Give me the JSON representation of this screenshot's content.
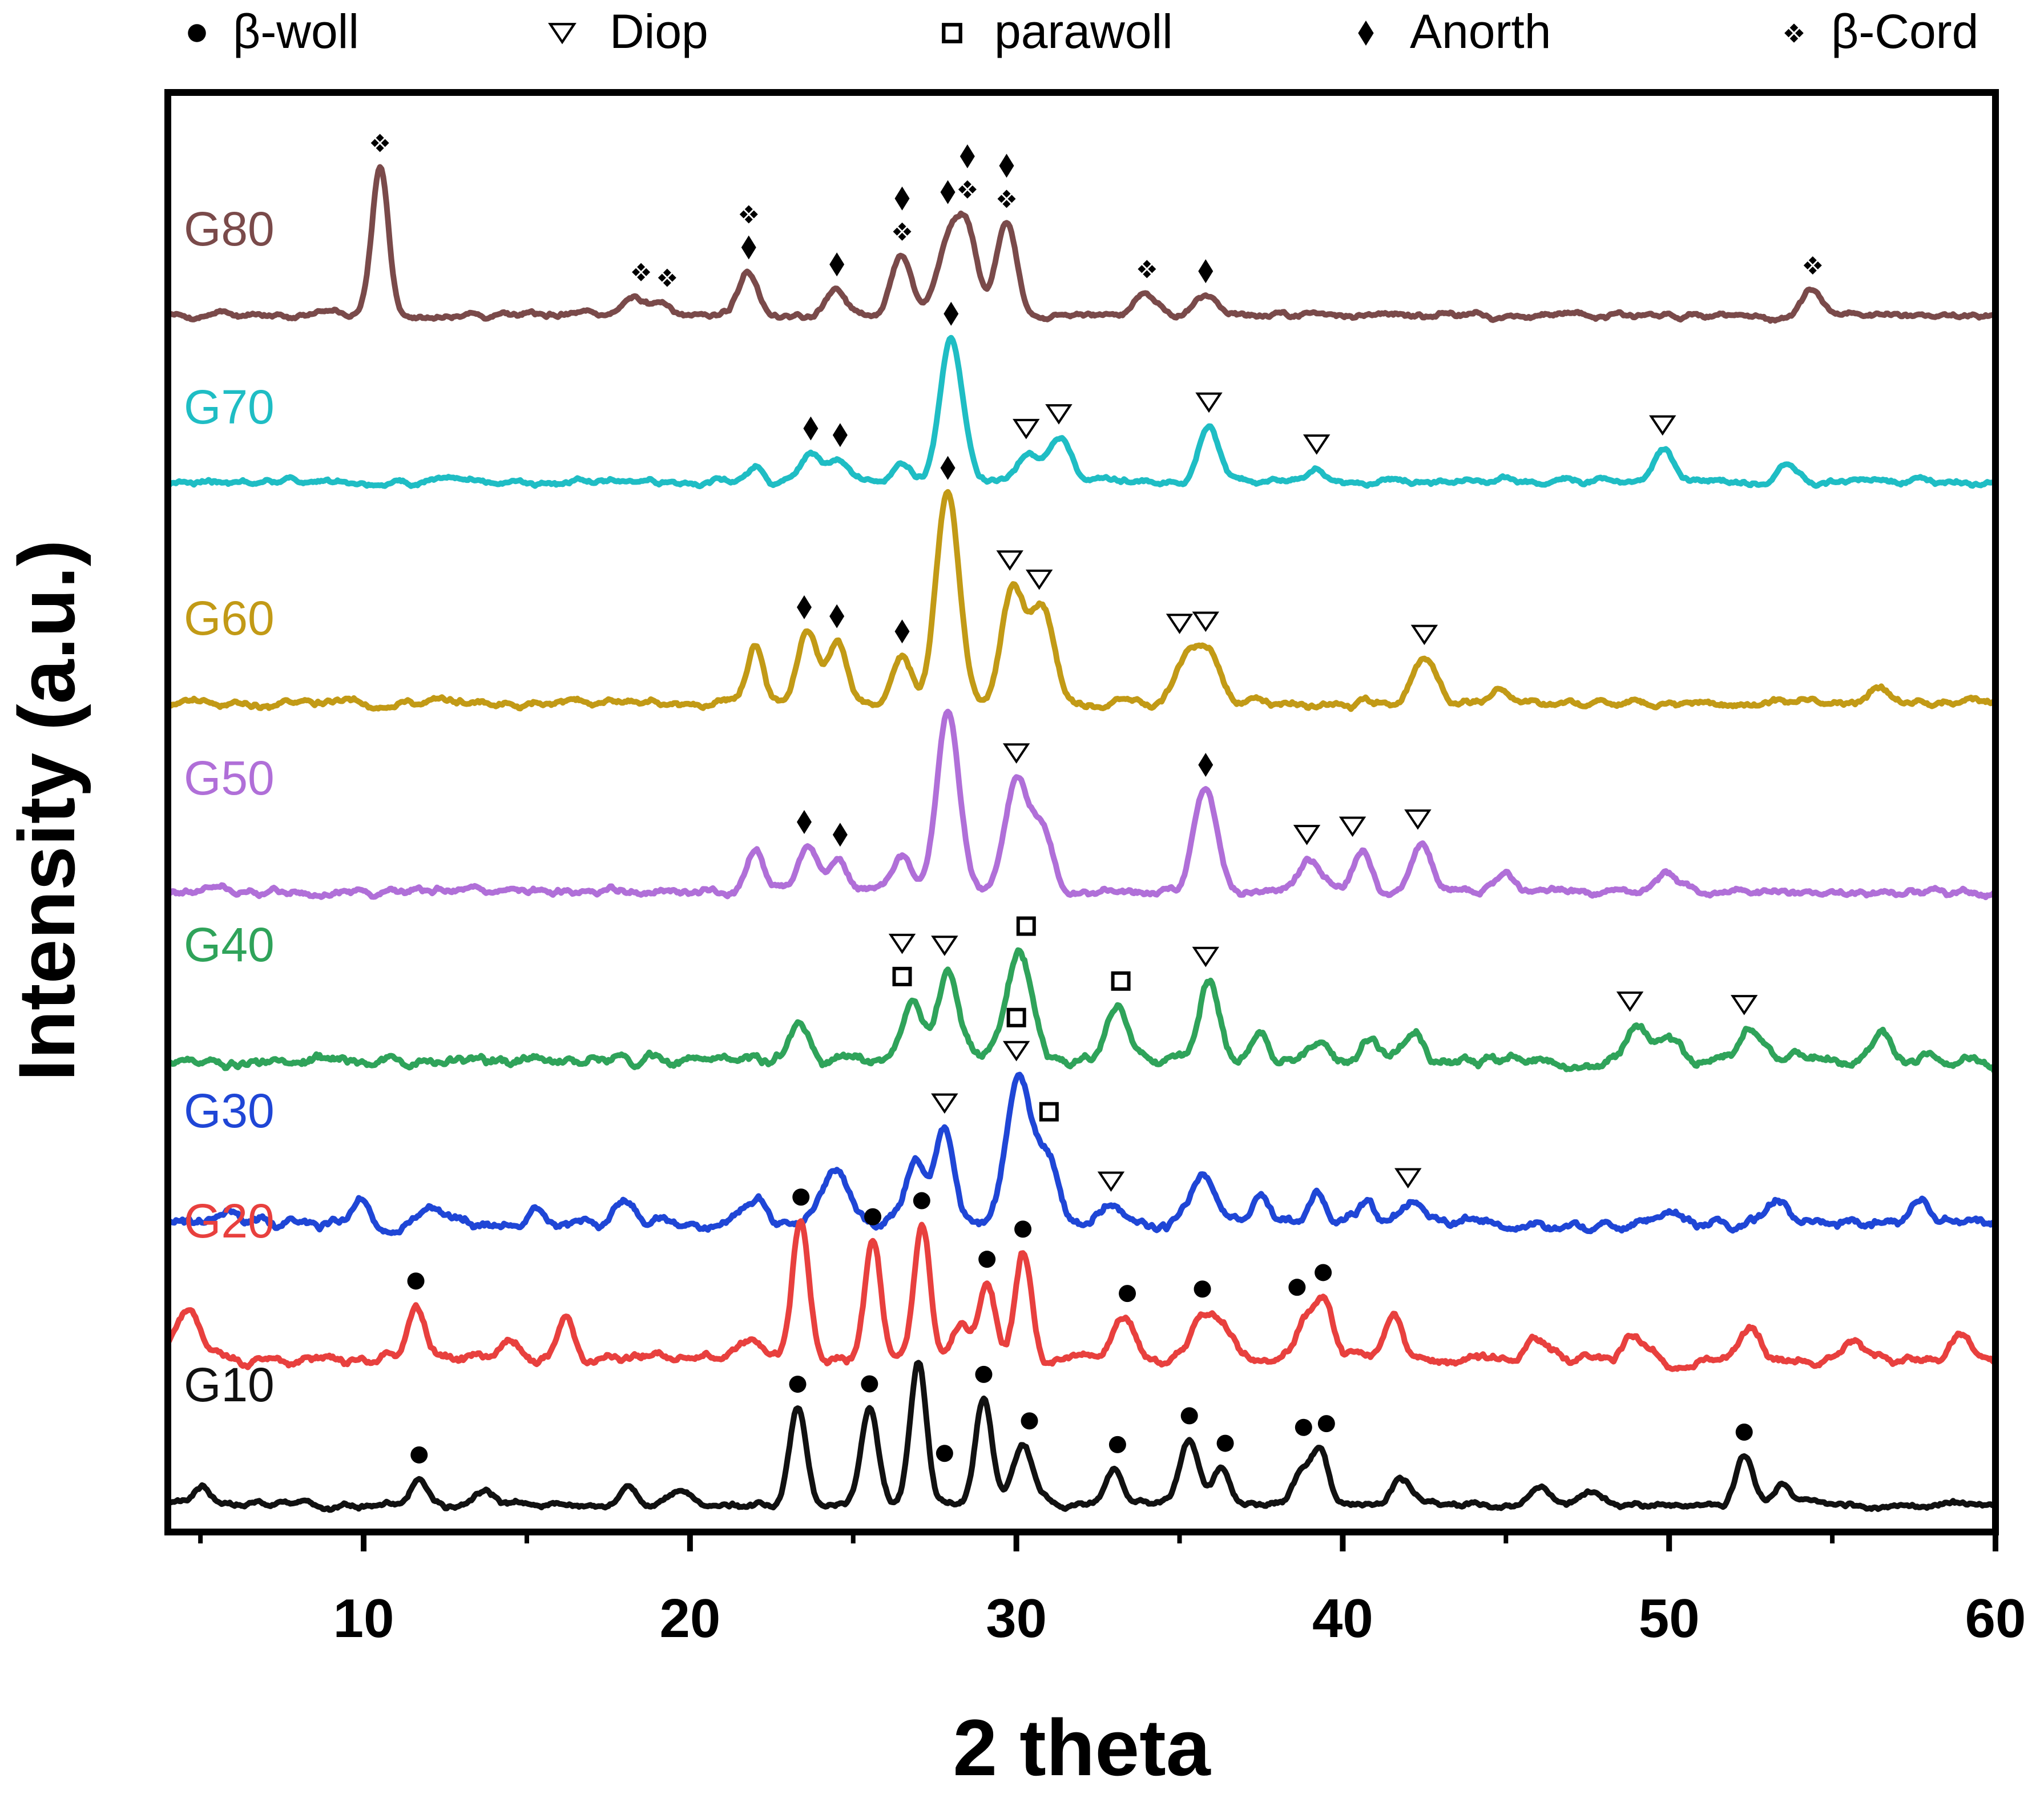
{
  "chart_data": {
    "type": "line",
    "xlabel": "2 theta",
    "ylabel": "Intensity (a.u.)",
    "xlim": [
      4,
      60
    ],
    "xticks": [
      10,
      20,
      30,
      40,
      50,
      60
    ],
    "xtick_labels": [
      "10",
      "20",
      "30",
      "40",
      "50",
      "60"
    ],
    "yticks": "none",
    "grid": false,
    "legend_position": "top",
    "legend": [
      {
        "key": "woll",
        "symbol": "filled-circle",
        "label": "β-woll"
      },
      {
        "key": "diop",
        "symbol": "open-triangle-down",
        "label": "Diop"
      },
      {
        "key": "parawoll",
        "symbol": "open-square",
        "label": "parawoll"
      },
      {
        "key": "anorth",
        "symbol": "filled-diamond",
        "label": "Anorth"
      },
      {
        "key": "cord",
        "symbol": "four-diamond-cluster",
        "label": "β-Cord"
      }
    ],
    "series": [
      {
        "name": "G80",
        "color": "#7a4a4a",
        "baseline": 0.34,
        "noise": 0.045,
        "seed": 8,
        "peaks": [
          [
            10.5,
            4.0,
            0.25
          ],
          [
            18.3,
            0.45,
            0.3
          ],
          [
            19.2,
            0.35,
            0.3
          ],
          [
            21.8,
            1.2,
            0.3
          ],
          [
            24.5,
            0.75,
            0.3
          ],
          [
            26.5,
            1.6,
            0.3
          ],
          [
            27.9,
            2.0,
            0.35
          ],
          [
            28.5,
            2.1,
            0.3
          ],
          [
            29.7,
            2.6,
            0.3
          ],
          [
            34.0,
            0.6,
            0.35
          ],
          [
            35.8,
            0.55,
            0.35
          ],
          [
            54.4,
            0.7,
            0.3
          ]
        ],
        "markers": [
          {
            "x": 10.5,
            "types": [
              "cord"
            ]
          },
          {
            "x": 18.5,
            "types": [
              "cord"
            ]
          },
          {
            "x": 19.3,
            "types": [
              "cord"
            ]
          },
          {
            "x": 21.8,
            "types": [
              "cord",
              "anorth"
            ]
          },
          {
            "x": 24.5,
            "types": [
              "anorth"
            ]
          },
          {
            "x": 26.5,
            "types": [
              "anorth",
              "cord"
            ]
          },
          {
            "x": 27.9,
            "types": [
              "anorth"
            ]
          },
          {
            "x": 28.5,
            "types": [
              "anorth",
              "cord"
            ]
          },
          {
            "x": 29.7,
            "types": [
              "anorth",
              "cord"
            ]
          },
          {
            "x": 34.0,
            "types": [
              "cord"
            ]
          },
          {
            "x": 35.8,
            "types": [
              "anorth"
            ]
          },
          {
            "x": 54.4,
            "types": [
              "cord"
            ]
          }
        ]
      },
      {
        "name": "G70",
        "color": "#1fbdc4",
        "baseline": 0.3,
        "noise": 0.045,
        "seed": 7,
        "peaks": [
          [
            22.0,
            0.5,
            0.25
          ],
          [
            23.7,
            0.8,
            0.3
          ],
          [
            24.5,
            0.65,
            0.3
          ],
          [
            26.5,
            0.5,
            0.3
          ],
          [
            28.0,
            4.0,
            0.35
          ],
          [
            30.4,
            0.8,
            0.3
          ],
          [
            31.3,
            1.3,
            0.35
          ],
          [
            35.9,
            1.6,
            0.3
          ],
          [
            39.2,
            0.3,
            0.3
          ],
          [
            49.8,
            0.9,
            0.3
          ],
          [
            53.6,
            0.4,
            0.3
          ]
        ],
        "markers": [
          {
            "x": 23.7,
            "types": [
              "anorth"
            ]
          },
          {
            "x": 24.6,
            "types": [
              "anorth"
            ]
          },
          {
            "x": 28.0,
            "types": [
              "anorth"
            ]
          },
          {
            "x": 30.3,
            "types": [
              "diop"
            ]
          },
          {
            "x": 31.3,
            "types": [
              "diop"
            ]
          },
          {
            "x": 35.9,
            "types": [
              "diop"
            ]
          },
          {
            "x": 39.2,
            "types": [
              "diop"
            ]
          },
          {
            "x": 49.8,
            "types": [
              "diop"
            ]
          }
        ]
      },
      {
        "name": "G60",
        "color": "#c29a16",
        "baseline": 0.28,
        "noise": 0.05,
        "seed": 6,
        "peaks": [
          [
            22.0,
            1.5,
            0.25
          ],
          [
            23.6,
            1.8,
            0.3
          ],
          [
            24.5,
            1.45,
            0.3
          ],
          [
            26.5,
            1.1,
            0.3
          ],
          [
            27.9,
            5.4,
            0.35
          ],
          [
            29.9,
            2.9,
            0.35
          ],
          [
            30.8,
            2.4,
            0.35
          ],
          [
            35.2,
            1.1,
            0.35
          ],
          [
            35.9,
            1.2,
            0.35
          ],
          [
            42.5,
            1.2,
            0.35
          ],
          [
            44.8,
            0.4,
            0.3
          ],
          [
            56.5,
            0.4,
            0.3
          ]
        ],
        "markers": [
          {
            "x": 23.5,
            "types": [
              "anorth"
            ]
          },
          {
            "x": 24.5,
            "types": [
              "anorth"
            ]
          },
          {
            "x": 26.5,
            "types": [
              "anorth"
            ]
          },
          {
            "x": 27.9,
            "types": [
              "anorth"
            ]
          },
          {
            "x": 29.8,
            "types": [
              "diop"
            ]
          },
          {
            "x": 30.7,
            "types": [
              "diop"
            ]
          },
          {
            "x": 35.0,
            "types": [
              "diop"
            ]
          },
          {
            "x": 35.8,
            "types": [
              "diop"
            ]
          },
          {
            "x": 42.5,
            "types": [
              "diop"
            ]
          }
        ]
      },
      {
        "name": "G50",
        "color": "#b06fd8",
        "baseline": 0.3,
        "noise": 0.05,
        "seed": 5,
        "peaks": [
          [
            22.0,
            1.0,
            0.25
          ],
          [
            23.6,
            1.1,
            0.3
          ],
          [
            24.5,
            0.8,
            0.3
          ],
          [
            26.5,
            0.9,
            0.3
          ],
          [
            27.9,
            4.2,
            0.35
          ],
          [
            30.0,
            2.7,
            0.35
          ],
          [
            30.8,
            1.5,
            0.3
          ],
          [
            35.8,
            2.4,
            0.35
          ],
          [
            39.0,
            0.8,
            0.35
          ],
          [
            40.6,
            0.9,
            0.3
          ],
          [
            42.4,
            1.2,
            0.3
          ],
          [
            45.0,
            0.4,
            0.3
          ],
          [
            49.9,
            0.5,
            0.35
          ]
        ],
        "markers": [
          {
            "x": 23.5,
            "types": [
              "anorth"
            ]
          },
          {
            "x": 24.6,
            "types": [
              "anorth"
            ]
          },
          {
            "x": 30.0,
            "types": [
              "diop"
            ]
          },
          {
            "x": 35.8,
            "types": [
              "anorth"
            ]
          },
          {
            "x": 38.9,
            "types": [
              "diop"
            ]
          },
          {
            "x": 40.3,
            "types": [
              "diop"
            ]
          },
          {
            "x": 42.3,
            "types": [
              "diop"
            ]
          }
        ]
      },
      {
        "name": "G40",
        "color": "#2fa35a",
        "baseline": 0.4,
        "noise": 0.07,
        "seed": 4,
        "peaks": [
          [
            23.3,
            0.9,
            0.3
          ],
          [
            26.8,
            1.4,
            0.3
          ],
          [
            27.9,
            2.0,
            0.35
          ],
          [
            30.1,
            2.5,
            0.4
          ],
          [
            33.1,
            1.3,
            0.35
          ],
          [
            35.9,
            1.9,
            0.3
          ],
          [
            37.4,
            0.6,
            0.3
          ],
          [
            39.3,
            0.5,
            0.3
          ],
          [
            40.9,
            0.6,
            0.3
          ],
          [
            42.2,
            0.6,
            0.3
          ],
          [
            49.0,
            0.8,
            0.3
          ],
          [
            49.9,
            0.7,
            0.3
          ],
          [
            52.5,
            0.9,
            0.3
          ],
          [
            56.5,
            0.6,
            0.3
          ]
        ],
        "markers": [
          {
            "x": 26.5,
            "types": [
              "diop",
              "parawoll"
            ]
          },
          {
            "x": 27.8,
            "types": [
              "diop"
            ]
          },
          {
            "x": 30.3,
            "types": [
              "parawoll"
            ]
          },
          {
            "x": 33.2,
            "types": [
              "parawoll"
            ]
          },
          {
            "x": 35.8,
            "types": [
              "diop"
            ]
          },
          {
            "x": 48.8,
            "types": [
              "diop"
            ]
          },
          {
            "x": 52.3,
            "types": [
              "diop"
            ]
          }
        ]
      },
      {
        "name": "G30",
        "color": "#1f46d6",
        "baseline": 0.45,
        "noise": 0.07,
        "seed": 3,
        "peaks": [
          [
            5.8,
            0.4,
            0.3
          ],
          [
            10.0,
            0.5,
            0.3
          ],
          [
            12.0,
            0.4,
            0.3
          ],
          [
            15.3,
            0.4,
            0.3
          ],
          [
            18.0,
            0.6,
            0.3
          ],
          [
            22.0,
            0.7,
            0.3
          ],
          [
            24.4,
            1.3,
            0.4
          ],
          [
            26.9,
            1.4,
            0.3
          ],
          [
            27.8,
            2.3,
            0.3
          ],
          [
            30.1,
            3.6,
            0.4
          ],
          [
            31.0,
            1.5,
            0.3
          ],
          [
            32.8,
            0.6,
            0.3
          ],
          [
            35.7,
            1.1,
            0.4
          ],
          [
            37.5,
            0.6,
            0.3
          ],
          [
            39.2,
            0.7,
            0.3
          ],
          [
            40.6,
            0.5,
            0.3
          ],
          [
            42.2,
            0.6,
            0.3
          ],
          [
            49.8,
            0.4,
            0.3
          ],
          [
            53.4,
            0.5,
            0.3
          ],
          [
            57.7,
            0.6,
            0.3
          ]
        ],
        "markers": [
          {
            "x": 27.8,
            "types": [
              "diop"
            ]
          },
          {
            "x": 30.0,
            "types": [
              "parawoll",
              "diop"
            ]
          },
          {
            "x": 31.0,
            "types": [
              "parawoll"
            ]
          },
          {
            "x": 32.9,
            "types": [
              "diop"
            ]
          },
          {
            "x": 42.0,
            "types": [
              "diop"
            ]
          }
        ]
      },
      {
        "name": "G20",
        "color": "#e8403e",
        "baseline": 0.32,
        "noise": 0.06,
        "seed": 2,
        "peaks": [
          [
            4.6,
            1.0,
            0.5
          ],
          [
            11.6,
            1.2,
            0.25
          ],
          [
            14.5,
            0.4,
            0.3
          ],
          [
            16.2,
            0.9,
            0.25
          ],
          [
            21.8,
            0.5,
            0.3
          ],
          [
            23.4,
            3.2,
            0.25
          ],
          [
            25.6,
            2.8,
            0.25
          ],
          [
            27.1,
            3.0,
            0.25
          ],
          [
            28.3,
            0.8,
            0.25
          ],
          [
            29.1,
            1.7,
            0.25
          ],
          [
            30.2,
            2.5,
            0.25
          ],
          [
            33.3,
            1.0,
            0.3
          ],
          [
            35.7,
            1.0,
            0.35
          ],
          [
            36.4,
            0.7,
            0.3
          ],
          [
            38.8,
            0.7,
            0.3
          ],
          [
            39.4,
            1.4,
            0.3
          ],
          [
            41.6,
            1.1,
            0.3
          ],
          [
            45.9,
            0.5,
            0.3
          ],
          [
            48.9,
            0.5,
            0.3
          ],
          [
            52.5,
            0.6,
            0.3
          ],
          [
            55.6,
            0.5,
            0.3
          ],
          [
            59.0,
            0.5,
            0.3
          ]
        ],
        "markers": [
          {
            "x": 11.6,
            "types": [
              "woll"
            ]
          },
          {
            "x": 23.4,
            "types": [
              "woll"
            ]
          },
          {
            "x": 25.6,
            "types": [
              "woll"
            ]
          },
          {
            "x": 27.1,
            "types": [
              "woll"
            ]
          },
          {
            "x": 29.1,
            "types": [
              "woll"
            ]
          },
          {
            "x": 30.2,
            "types": [
              "woll"
            ]
          },
          {
            "x": 33.4,
            "types": [
              "woll"
            ]
          },
          {
            "x": 35.7,
            "types": [
              "woll"
            ]
          },
          {
            "x": 38.6,
            "types": [
              "woll"
            ]
          },
          {
            "x": 39.4,
            "types": [
              "woll"
            ]
          }
        ]
      },
      {
        "name": "G10",
        "color": "#111111",
        "baseline": 0.18,
        "noise": 0.04,
        "seed": 1,
        "peaks": [
          [
            5.0,
            0.4,
            0.3
          ],
          [
            11.7,
            0.6,
            0.25
          ],
          [
            13.7,
            0.3,
            0.3
          ],
          [
            18.1,
            0.4,
            0.25
          ],
          [
            19.8,
            0.35,
            0.3
          ],
          [
            23.3,
            2.4,
            0.25
          ],
          [
            25.5,
            2.3,
            0.25
          ],
          [
            27.0,
            3.4,
            0.25
          ],
          [
            29.0,
            2.5,
            0.25
          ],
          [
            30.2,
            1.4,
            0.3
          ],
          [
            33.0,
            0.9,
            0.25
          ],
          [
            35.3,
            1.5,
            0.3
          ],
          [
            36.3,
            0.9,
            0.25
          ],
          [
            38.7,
            0.7,
            0.25
          ],
          [
            39.3,
            1.3,
            0.25
          ],
          [
            41.8,
            0.7,
            0.3
          ],
          [
            46.0,
            0.4,
            0.25
          ],
          [
            47.6,
            0.3,
            0.25
          ],
          [
            52.3,
            1.2,
            0.25
          ],
          [
            53.5,
            0.6,
            0.25
          ]
        ],
        "markers": [
          {
            "x": 11.7,
            "types": [
              "woll"
            ]
          },
          {
            "x": 23.3,
            "types": [
              "woll"
            ]
          },
          {
            "x": 25.5,
            "types": [
              "woll"
            ]
          },
          {
            "x": 27.8,
            "types": [
              "woll"
            ]
          },
          {
            "x": 29.0,
            "types": [
              "woll"
            ]
          },
          {
            "x": 30.4,
            "types": [
              "woll"
            ]
          },
          {
            "x": 33.1,
            "types": [
              "woll"
            ]
          },
          {
            "x": 35.3,
            "types": [
              "woll"
            ]
          },
          {
            "x": 36.4,
            "types": [
              "woll"
            ]
          },
          {
            "x": 38.8,
            "types": [
              "woll"
            ]
          },
          {
            "x": 39.5,
            "types": [
              "woll"
            ]
          },
          {
            "x": 52.3,
            "types": [
              "woll"
            ]
          }
        ]
      }
    ]
  }
}
